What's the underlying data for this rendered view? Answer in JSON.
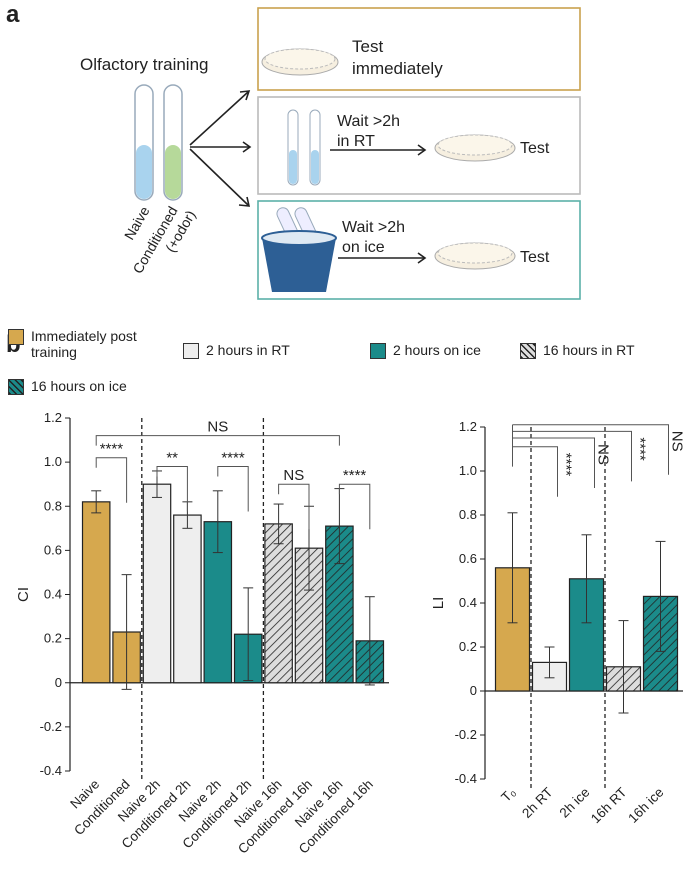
{
  "panel_a": {
    "label": "a",
    "title": "Olfactory training",
    "tube_labels": [
      "Naive",
      "Conditioned",
      "(+odor)"
    ],
    "boxes": [
      {
        "lines": [
          "Test",
          "immediately"
        ]
      },
      {
        "lines": [
          "Wait >2h",
          "in RT"
        ],
        "test": "Test"
      },
      {
        "lines": [
          "Wait >2h",
          "on ice"
        ],
        "test": "Test"
      }
    ]
  },
  "panel_b_label": "b",
  "chart_data": [
    {
      "type": "bar",
      "ylabel": "CI",
      "categories": [
        "Naive",
        "Conditioned",
        "Naive 2h",
        "Conditioned 2h",
        "Naive 2h",
        "Conditioned 2h",
        "Naive 16h",
        "Conditioned 16h",
        "Naive 16h",
        "Conditioned 16h"
      ],
      "series": [
        {
          "name": "Immediately post training",
          "color": "#d6a84e",
          "hatched": false,
          "values": [
            0.82,
            0.23,
            null,
            null,
            null,
            null,
            null,
            null,
            null,
            null
          ],
          "errors": [
            0.05,
            0.26,
            null,
            null,
            null,
            null,
            null,
            null,
            null,
            null
          ]
        },
        {
          "name": "2 hours in RT",
          "color": "#eeeeee",
          "hatched": false,
          "values": [
            null,
            null,
            0.9,
            0.76,
            null,
            null,
            null,
            null,
            null,
            null
          ],
          "errors": [
            null,
            null,
            0.06,
            0.06,
            null,
            null,
            null,
            null,
            null,
            null
          ]
        },
        {
          "name": "2 hours on ice",
          "color": "#1b8b8a",
          "hatched": false,
          "values": [
            null,
            null,
            null,
            null,
            0.73,
            0.22,
            null,
            null,
            null,
            null
          ],
          "errors": [
            null,
            null,
            null,
            null,
            0.14,
            0.21,
            null,
            null,
            null,
            null
          ]
        },
        {
          "name": "16 hours in RT",
          "color": "#dddddd",
          "hatched": true,
          "values": [
            null,
            null,
            null,
            null,
            null,
            null,
            0.72,
            0.61,
            null,
            null
          ],
          "errors": [
            null,
            null,
            null,
            null,
            null,
            null,
            0.09,
            0.19,
            null,
            null
          ]
        },
        {
          "name": "16 hours on ice",
          "color": "#1b8b8a",
          "hatched": true,
          "values": [
            null,
            null,
            null,
            null,
            null,
            null,
            null,
            null,
            0.71,
            0.19
          ],
          "errors": [
            null,
            null,
            null,
            null,
            null,
            null,
            null,
            null,
            0.17,
            0.2
          ]
        }
      ],
      "ylim": [
        -0.4,
        1.2
      ],
      "yticks": [
        -0.4,
        -0.2,
        0,
        0.2,
        0.4,
        0.6,
        0.8,
        {
          "value": 1,
          "label": "1.0"
        },
        1.2
      ],
      "annotations": [
        "****",
        "**",
        "****",
        "NS",
        "****",
        "NS"
      ]
    },
    {
      "type": "bar",
      "ylabel": "LI",
      "categories": [
        "T₀",
        "2h RT",
        "2h ice",
        "16h RT",
        "16h ice"
      ],
      "values": [
        0.56,
        0.13,
        0.51,
        0.11,
        0.43
      ],
      "errors": [
        0.25,
        0.07,
        0.2,
        0.21,
        0.25
      ],
      "colors": [
        "#d6a84e",
        "#eeeeee",
        "#1b8b8a",
        "#dddddd",
        "#1b8b8a"
      ],
      "hatched": [
        false,
        false,
        false,
        true,
        true
      ],
      "ylim": [
        -0.4,
        1.2
      ],
      "yticks": [
        -0.4,
        -0.2,
        0,
        0.2,
        0.4,
        0.6,
        0.8,
        {
          "value": 1,
          "label": "1.0"
        },
        1.2
      ],
      "annotations": [
        "****",
        "NS",
        "****",
        "NS"
      ]
    }
  ]
}
